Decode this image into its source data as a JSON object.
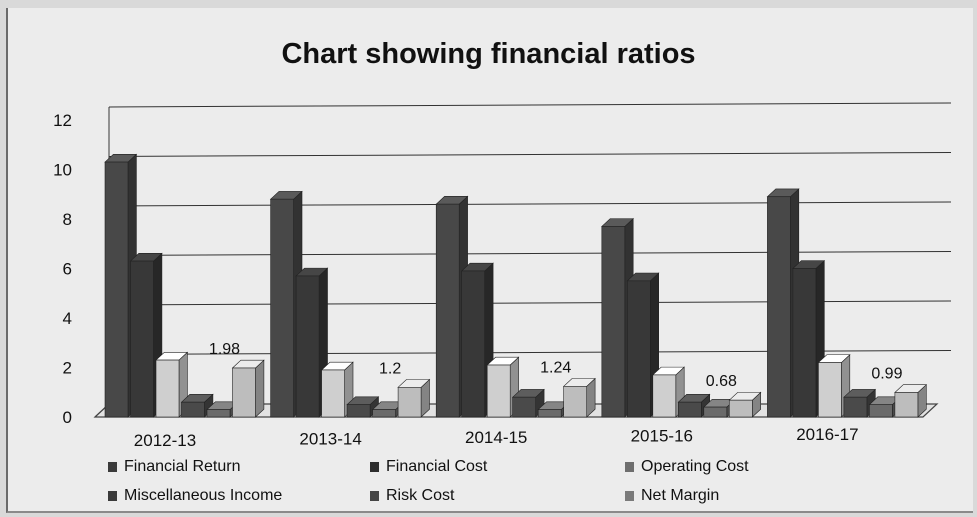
{
  "chart_data": {
    "type": "bar",
    "title": "Chart showing financial ratios",
    "categories": [
      "2012-13",
      "2013-14",
      "2014-15",
      "2015-16",
      "2016-17"
    ],
    "ylim": [
      0,
      12
    ],
    "yticks": [
      0,
      2,
      4,
      6,
      8,
      10,
      12
    ],
    "grid": true,
    "legend_position": "bottom",
    "three_d": true,
    "series": [
      {
        "name": "Financial Return",
        "values": [
          10.3,
          8.8,
          8.6,
          7.7,
          8.9
        ],
        "color": "#484848"
      },
      {
        "name": "Financial Cost",
        "values": [
          6.3,
          5.7,
          5.9,
          5.5,
          6.0
        ],
        "color": "#383838"
      },
      {
        "name": "Operating Cost",
        "values": [
          2.3,
          1.9,
          2.1,
          1.7,
          2.2
        ],
        "color": "#cfcfcf"
      },
      {
        "name": "Miscellaneous Income",
        "values": [
          0.6,
          0.5,
          0.8,
          0.6,
          0.8
        ],
        "color": "#4a4a4a"
      },
      {
        "name": "Risk Cost",
        "values": [
          0.3,
          0.3,
          0.3,
          0.4,
          0.5
        ],
        "color": "#6a6a6a"
      },
      {
        "name": "Net Margin",
        "values": [
          1.98,
          1.2,
          1.24,
          0.68,
          0.99
        ],
        "color": "#bdbdbd"
      }
    ],
    "data_labels": [
      "1.98",
      "1.2",
      "1.24",
      "0.68",
      "0.99"
    ]
  },
  "legend": [
    {
      "label": "Financial Return",
      "color": "#3a3a3a"
    },
    {
      "label": "Financial Cost",
      "color": "#2e2e2e"
    },
    {
      "label": "Operating Cost",
      "color": "#6e6e6e"
    },
    {
      "label": "Miscellaneous Income",
      "color": "#3a3a3a"
    },
    {
      "label": "Risk Cost",
      "color": "#454545"
    },
    {
      "label": "Net Margin",
      "color": "#7a7a7a"
    }
  ]
}
